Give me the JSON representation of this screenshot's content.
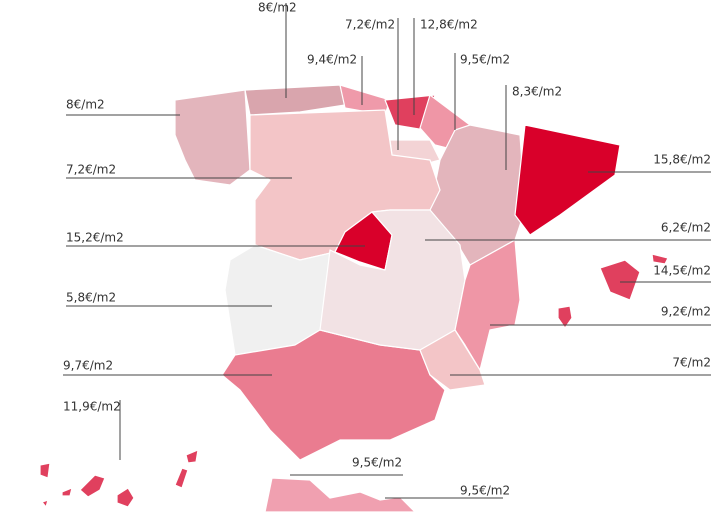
{
  "regions": [
    {
      "label": "8€/m2",
      "color": "#d9a5ad"
    },
    {
      "label": "9,4€/m2",
      "color": "#ef9aaa"
    },
    {
      "label": "7,2€/m2",
      "color": "#f3d3d5"
    },
    {
      "label": "12,8€/m2",
      "color": "#e0405e"
    },
    {
      "label": "9,5€/m2",
      "color": "#ef96a6"
    },
    {
      "label": "8,3€/m2",
      "color": "#e3b5bc"
    },
    {
      "label": "8€/m2",
      "color": "#e3b5bc"
    },
    {
      "label": "7,2€/m2",
      "color": "#f3c5c7"
    },
    {
      "label": "15,2€/m2",
      "color": "#d9002a"
    },
    {
      "label": "5,8€/m2",
      "color": "#f0f0f0"
    },
    {
      "label": "9,7€/m2",
      "color": "#ea7c90"
    },
    {
      "label": "11,9€/m2",
      "color": "#e0405e"
    },
    {
      "label": "15,8€/m2",
      "color": "#d9002a"
    },
    {
      "label": "6,2€/m2",
      "color": "#f2e2e4"
    },
    {
      "label": "14,5€/m2",
      "color": "#e0405e"
    },
    {
      "label": "9,2€/m2",
      "color": "#ef96a6"
    },
    {
      "label": "7€/m2",
      "color": "#f3c5c7"
    },
    {
      "label": "9,5€/m2",
      "color": "#f0a0b0"
    },
    {
      "label": "9,5€/m2",
      "color": "#f0a0b0"
    }
  ]
}
